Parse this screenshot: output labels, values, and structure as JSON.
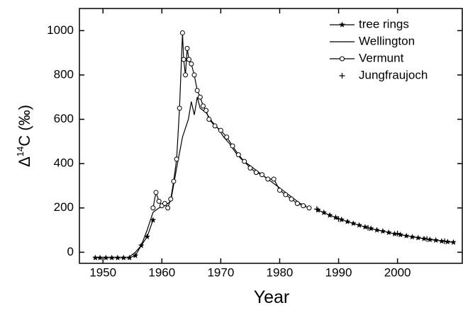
{
  "chart_data": {
    "type": "line",
    "x_label": "Year",
    "y_label": {
      "symbol": "Δ",
      "superscript": "14",
      "text": "C (‰)"
    },
    "xlim": [
      1946,
      2011
    ],
    "xticks": [
      1950,
      1960,
      1970,
      1980,
      1990,
      2000
    ],
    "ylim": [
      -50,
      1100
    ],
    "yticks": [
      0,
      200,
      400,
      600,
      800,
      1000
    ],
    "legend": "top-right",
    "series": [
      {
        "name": "tree rings",
        "color": "#000000",
        "line": true,
        "marker": "star",
        "x": [
          1948.7,
          1949.5,
          1950.5,
          1951.5,
          1952.5,
          1953.5,
          1954.5,
          1955.5,
          1956.5,
          1957.5,
          1958.5,
          null,
          1986.5,
          1987.5,
          1988.5,
          1989.5,
          1990.5,
          1991.5,
          1992.5,
          1993.5,
          1994.5,
          1995.5,
          1996.5,
          1997.5,
          1998.5,
          1999.5,
          2000.5,
          2001.5,
          2002.5,
          2003.5,
          2004.5,
          2005.5,
          2006.5,
          2007.5,
          2008.5,
          2009.5
        ],
        "values": [
          -25,
          -25,
          -25,
          -25,
          -25,
          -25,
          -25,
          -15,
          30,
          70,
          145,
          null,
          190,
          179,
          167,
          157,
          147,
          138,
          130,
          122,
          114,
          107,
          100,
          95,
          89,
          83,
          79,
          74,
          69,
          65,
          61,
          57,
          54,
          50,
          47,
          45
        ]
      },
      {
        "name": "Wellington",
        "color": "#000000",
        "line": true,
        "marker": "none",
        "x": [
          1954.5,
          1955.5,
          1956.5,
          1957.5,
          1958.5,
          1959.5,
          1960.5,
          1961.5,
          1962.5,
          1963.5,
          1964.5,
          1965,
          1965.5,
          1966,
          1966.5,
          1967.5,
          1968.5,
          1969.5,
          1970.5,
          1971.5,
          1972.5,
          1973.5,
          1974.5,
          1975.5,
          1976.5,
          1977.5,
          1978.5,
          1979.5,
          1980.5,
          1981.5,
          1982.5,
          1983.5,
          1984.5
        ],
        "values": [
          -20,
          0,
          30,
          100,
          180,
          200,
          210,
          230,
          380,
          520,
          600,
          680,
          620,
          700,
          650,
          630,
          590,
          560,
          520,
          490,
          450,
          420,
          400,
          380,
          360,
          340,
          320,
          300,
          280,
          260,
          240,
          220,
          210
        ]
      },
      {
        "name": "Vermunt",
        "color": "#000000",
        "line": true,
        "marker": "circle",
        "x": [
          1958.5,
          1959,
          1959.5,
          1960,
          1960.5,
          1961,
          1961.5,
          1962,
          1962.5,
          1963,
          1963.5,
          1963.7,
          1964,
          1964.3,
          1964.6,
          1965,
          1965.5,
          1966,
          1966.5,
          1967,
          1967.5,
          1968,
          1969,
          1970,
          1971,
          1972,
          1973,
          1974,
          1975,
          1976,
          1977,
          1978,
          1979,
          1980,
          1981,
          1982,
          1983,
          1984,
          1985
        ],
        "values": [
          200,
          270,
          230,
          210,
          220,
          200,
          240,
          320,
          420,
          650,
          990,
          870,
          800,
          920,
          870,
          850,
          800,
          730,
          700,
          660,
          640,
          600,
          570,
          550,
          520,
          480,
          440,
          410,
          380,
          360,
          350,
          330,
          330,
          280,
          260,
          240,
          220,
          210,
          200
        ]
      },
      {
        "name": "Jungfraujoch",
        "color": "#000000",
        "line": false,
        "marker": "plus",
        "x": [
          1986.3,
          1990,
          1995,
          2000,
          2005,
          2008
        ],
        "values": [
          195,
          150,
          110,
          85,
          60,
          50
        ]
      }
    ]
  }
}
